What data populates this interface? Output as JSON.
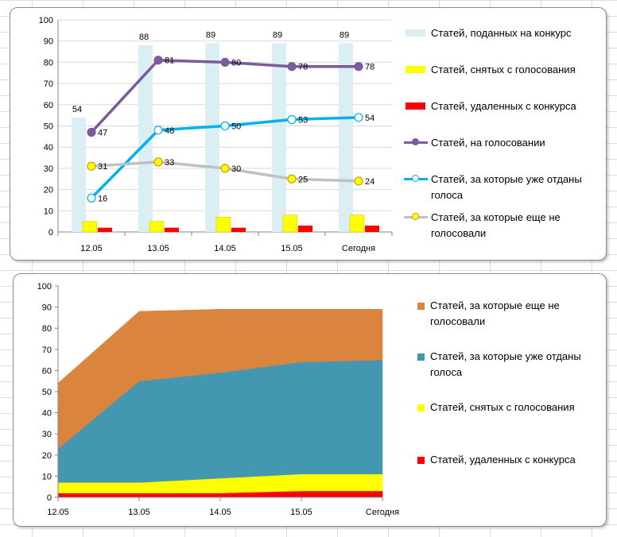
{
  "chart_data": [
    {
      "type": "bar",
      "categories": [
        "12.05",
        "13.05",
        "14.05",
        "15.05",
        "Сегодня"
      ],
      "ylim": [
        0,
        100
      ],
      "yticks": [
        0,
        10,
        20,
        30,
        40,
        50,
        60,
        70,
        80,
        90,
        100
      ],
      "grid": true,
      "legend_position": "right",
      "series": [
        {
          "name": "Статей, поданных на конкурс",
          "kind": "bar",
          "color": "#dbeef4",
          "values": [
            54,
            88,
            89,
            89,
            89
          ],
          "labels": [
            54,
            88,
            89,
            89,
            89
          ]
        },
        {
          "name": "Статей, снятых с голосования",
          "kind": "bar",
          "color": "#ffff00",
          "values": [
            5,
            5,
            7,
            8,
            8
          ]
        },
        {
          "name": "Статей, удаленных с конкурса",
          "kind": "bar",
          "color": "#ff0000",
          "values": [
            2,
            2,
            2,
            3,
            3
          ]
        },
        {
          "name": "Статей, на голосовании",
          "kind": "line",
          "color": "#7b5a9e",
          "marker_fill": "#7b5a9e",
          "values": [
            47,
            81,
            80,
            78,
            78
          ],
          "labels": [
            47,
            81,
            80,
            78,
            78
          ]
        },
        {
          "name": "Статей, за которые уже отданы голоса",
          "kind": "line",
          "color": "#00b0f0",
          "marker_fill": "#ffffff",
          "values": [
            16,
            48,
            50,
            53,
            54
          ],
          "labels": [
            16,
            48,
            50,
            53,
            54
          ]
        },
        {
          "name": "Статей, за которые еще не голосовали",
          "kind": "line",
          "color": "#c0c0c0",
          "marker_fill": "#ffff00",
          "marker_stroke": "#c9a000",
          "values": [
            31,
            33,
            30,
            25,
            24
          ],
          "labels": [
            31,
            33,
            30,
            25,
            24
          ]
        }
      ]
    },
    {
      "type": "area",
      "stacked": true,
      "categories": [
        "12.05",
        "13.05",
        "14.05",
        "15.05",
        "Сегодня"
      ],
      "ylim": [
        0,
        100
      ],
      "yticks": [
        0,
        10,
        20,
        30,
        40,
        50,
        60,
        70,
        80,
        90,
        100
      ],
      "grid": false,
      "legend_position": "right",
      "series": [
        {
          "name": "Статей, удаленных с конкурса",
          "color": "#ff0000",
          "values": [
            2,
            2,
            2,
            3,
            3
          ]
        },
        {
          "name": "Статей, снятых с голосования",
          "color": "#ffff00",
          "values": [
            5,
            5,
            7,
            8,
            8
          ]
        },
        {
          "name": "Статей, за которые уже отданы голоса",
          "color": "#4397b1",
          "values": [
            16,
            48,
            50,
            53,
            54
          ]
        },
        {
          "name": "Статей, за которые еще не голосовали",
          "color": "#db843d",
          "values": [
            31,
            33,
            30,
            25,
            24
          ]
        }
      ],
      "legend_order": [
        3,
        2,
        1,
        0
      ]
    }
  ]
}
